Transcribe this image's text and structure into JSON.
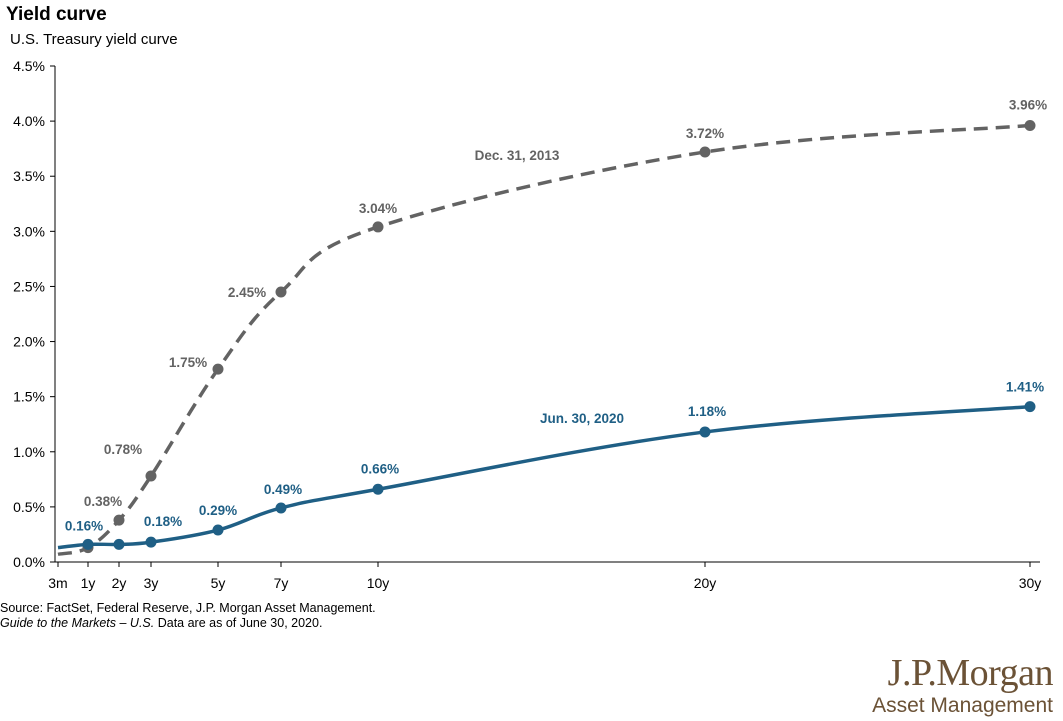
{
  "title": "Yield curve",
  "subtitle": "U.S. Treasury yield curve",
  "source_line1": "Source: FactSet, Federal Reserve, J.P. Morgan Asset Management.",
  "source_line2_italic": "Guide to the Markets – U.S.",
  "source_line2_rest": " Data are as of June 30, 2020.",
  "logo": {
    "main": "J.P.Morgan",
    "sub": "Asset Management"
  },
  "colors": {
    "jun2020": "#1f5f85",
    "dec2013": "#636363",
    "logo": "#6b5236"
  },
  "chart_data": {
    "type": "line",
    "x_ticks": [
      "3m",
      "1y",
      "2y",
      "3y",
      "5y",
      "7y",
      "10y",
      "20y",
      "30y"
    ],
    "x_years": [
      0.25,
      1,
      2,
      3,
      5,
      7,
      10,
      20,
      30
    ],
    "y_ticks": [
      "0.0%",
      "0.5%",
      "1.0%",
      "1.5%",
      "2.0%",
      "2.5%",
      "3.0%",
      "3.5%",
      "4.0%",
      "4.5%"
    ],
    "ylim": [
      0,
      4.5
    ],
    "series": [
      {
        "name": "Dec. 31, 2013",
        "style": "dashed",
        "points": [
          {
            "x": 0.25,
            "y": 0.07,
            "label": ""
          },
          {
            "x": 1,
            "y": 0.13,
            "label": ""
          },
          {
            "x": 2,
            "y": 0.38,
            "label": "0.38%"
          },
          {
            "x": 3,
            "y": 0.78,
            "label": "0.78%"
          },
          {
            "x": 5,
            "y": 1.75,
            "label": "1.75%"
          },
          {
            "x": 7,
            "y": 2.45,
            "label": "2.45%"
          },
          {
            "x": 10,
            "y": 3.04,
            "label": "3.04%"
          },
          {
            "x": 20,
            "y": 3.72,
            "label": "3.72%"
          },
          {
            "x": 30,
            "y": 3.96,
            "label": "3.96%"
          }
        ]
      },
      {
        "name": "Jun. 30, 2020",
        "style": "solid",
        "points": [
          {
            "x": 0.25,
            "y": 0.13,
            "label": ""
          },
          {
            "x": 1,
            "y": 0.16,
            "label": "0.16%"
          },
          {
            "x": 2,
            "y": 0.16,
            "label": ""
          },
          {
            "x": 3,
            "y": 0.18,
            "label": "0.18%"
          },
          {
            "x": 5,
            "y": 0.29,
            "label": "0.29%"
          },
          {
            "x": 7,
            "y": 0.49,
            "label": "0.49%"
          },
          {
            "x": 10,
            "y": 0.66,
            "label": "0.66%"
          },
          {
            "x": 20,
            "y": 1.18,
            "label": "1.18%"
          },
          {
            "x": 30,
            "y": 1.41,
            "label": "1.41%"
          }
        ]
      }
    ]
  }
}
